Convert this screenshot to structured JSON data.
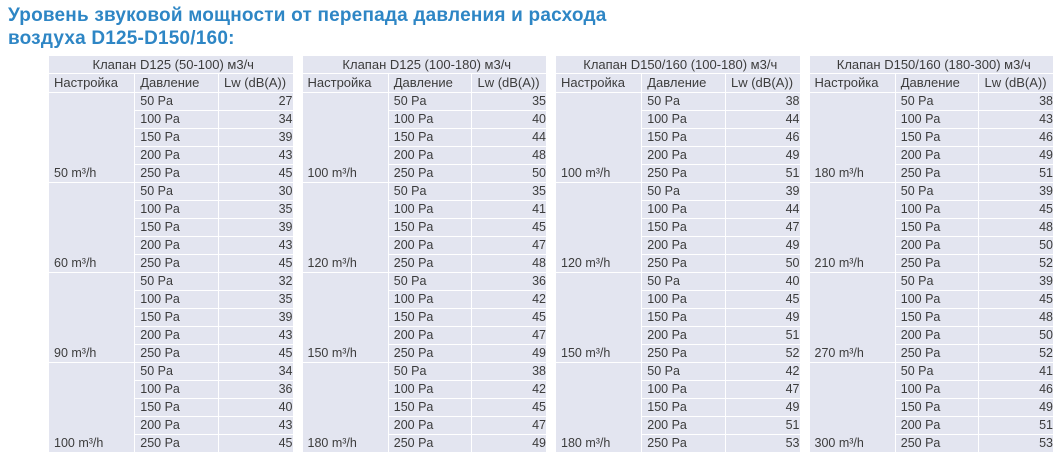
{
  "title": {
    "line1": "Уровень звуковой мощности от перепада давления и расхода",
    "line2": "воздуха D125-D150/160:"
  },
  "columns": [
    "Настройка",
    "Давление",
    "Lw (dB(A))"
  ],
  "pressures": [
    "50 Pa",
    "100 Pa",
    "150 Pa",
    "200 Pa",
    "250 Pa"
  ],
  "tables": [
    {
      "title": "Клапан D125 (50-100) м3/ч",
      "groups": [
        {
          "setting": "50 m³/h",
          "values": [
            27,
            34,
            39,
            43,
            45
          ]
        },
        {
          "setting": "60 m³/h",
          "values": [
            30,
            35,
            39,
            43,
            45
          ]
        },
        {
          "setting": "90 m³/h",
          "values": [
            32,
            35,
            39,
            43,
            45
          ]
        },
        {
          "setting": "100 m³/h",
          "values": [
            34,
            36,
            40,
            43,
            45
          ]
        }
      ]
    },
    {
      "title": "Клапан D125 (100-180) м3/ч",
      "groups": [
        {
          "setting": "100 m³/h",
          "values": [
            35,
            40,
            44,
            48,
            50
          ]
        },
        {
          "setting": "120 m³/h",
          "values": [
            35,
            41,
            45,
            47,
            48
          ]
        },
        {
          "setting": "150 m³/h",
          "values": [
            36,
            42,
            45,
            47,
            49
          ]
        },
        {
          "setting": "180 m³/h",
          "values": [
            38,
            42,
            45,
            47,
            49
          ]
        }
      ]
    },
    {
      "title": "Клапан D150/160 (100-180) м3/ч",
      "groups": [
        {
          "setting": "100 m³/h",
          "values": [
            38,
            44,
            46,
            49,
            51
          ]
        },
        {
          "setting": "120 m³/h",
          "values": [
            39,
            44,
            47,
            49,
            50
          ]
        },
        {
          "setting": "150 m³/h",
          "values": [
            40,
            45,
            49,
            51,
            52
          ]
        },
        {
          "setting": "180 m³/h",
          "values": [
            42,
            47,
            49,
            51,
            53
          ]
        }
      ]
    },
    {
      "title": "Клапан D150/160 (180-300) м3/ч",
      "groups": [
        {
          "setting": "180 m³/h",
          "values": [
            38,
            43,
            46,
            49,
            51
          ]
        },
        {
          "setting": "210 m³/h",
          "values": [
            39,
            45,
            48,
            50,
            52
          ]
        },
        {
          "setting": "270 m³/h",
          "values": [
            39,
            45,
            48,
            50,
            52
          ]
        },
        {
          "setting": "300 m³/h",
          "values": [
            41,
            46,
            49,
            51,
            53
          ]
        }
      ]
    }
  ],
  "colors": {
    "title_text": "#2e86c5",
    "cell_bg": "#e3e5f0",
    "cell_text": "#3c3c3c",
    "page_bg": "#ffffff"
  }
}
